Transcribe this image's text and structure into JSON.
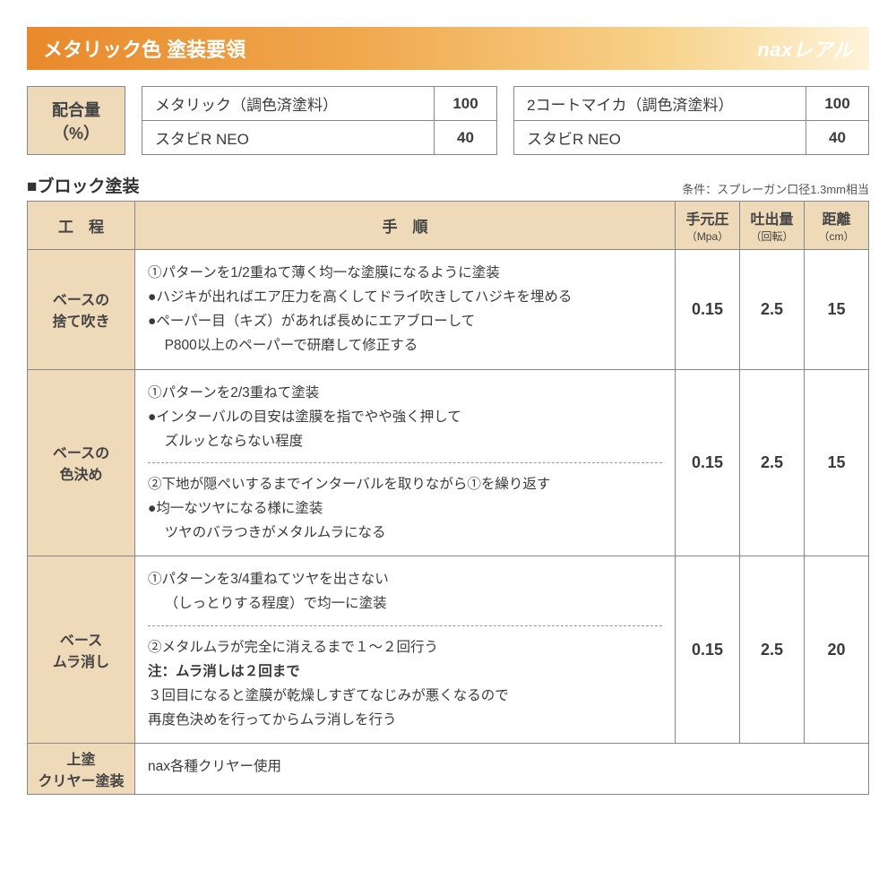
{
  "colors": {
    "header_grad_start": "#e9892c",
    "header_grad_end": "#fef3d9",
    "header_text": "#ffffff",
    "cell_bg": "#eed9b9",
    "border": "#888888",
    "body_text": "#3a3a3a"
  },
  "header": {
    "title": "メタリック色 塗装要領",
    "logo_prefix": "nax",
    "logo_suffix": "レアル"
  },
  "mix": {
    "label_line1": "配合量",
    "label_line2": "（%）",
    "left": {
      "rows": [
        {
          "name": "メタリック（調色済塗料）",
          "value": "100"
        },
        {
          "name": "スタビR NEO",
          "value": "40"
        }
      ]
    },
    "right": {
      "rows": [
        {
          "name": "2コートマイカ（調色済塗料）",
          "value": "100"
        },
        {
          "name": "スタビR NEO",
          "value": "40"
        }
      ]
    }
  },
  "section_title": "■ブロック塗装",
  "condition_note": "条件：スプレーガン口径1.3mm相当",
  "table": {
    "headers": {
      "process": "工　程",
      "procedure": "手　順",
      "pressure_main": "手元圧",
      "pressure_sub": "（Mpa）",
      "discharge_main": "吐出量",
      "discharge_sub": "（回転）",
      "distance_main": "距離",
      "distance_sub": "（cm）"
    },
    "rows": [
      {
        "process_l1": "ベースの",
        "process_l2": "捨て吹き",
        "line1": "①パターンを1/2重ねて薄く均一な塗膜になるように塗装",
        "line2": "●ハジキが出ればエア圧力を高くしてドライ吹きしてハジキを埋める",
        "line3": "●ペーパー目（キズ）があれば長めにエアブローして",
        "line4": "P800以上のペーパーで研磨して修正する",
        "pressure": "0.15",
        "discharge": "2.5",
        "distance": "15"
      },
      {
        "process_l1": "ベースの",
        "process_l2": "色決め",
        "a_line1": "①パターンを2/3重ねて塗装",
        "a_line2": "●インターバルの目安は塗膜を指でやや強く押して",
        "a_line3": "ズルッとならない程度",
        "b_line1": "②下地が隠ぺいするまでインターバルを取りながら①を繰り返す",
        "b_line2": "●均一なツヤになる様に塗装",
        "b_line3": "ツヤのバラつきがメタルムラになる",
        "pressure": "0.15",
        "discharge": "2.5",
        "distance": "15"
      },
      {
        "process_l1": "ベース",
        "process_l2": "ムラ消し",
        "a_line1": "①パターンを3/4重ねてツヤを出さない",
        "a_line2": "（しっとりする程度）で均一に塗装",
        "b_line1": "②メタルムラが完全に消えるまで１〜２回行う",
        "b_note": "注：ムラ消しは２回まで",
        "b_line3": "３回目になると塗膜が乾燥しすぎてなじみが悪くなるので",
        "b_line4": "再度色決めを行ってからムラ消しを行う",
        "pressure": "0.15",
        "discharge": "2.5",
        "distance": "20"
      },
      {
        "process_l1": "上塗",
        "process_l2": "クリヤー塗装",
        "line1": "nax各種クリヤー使用"
      }
    ]
  }
}
